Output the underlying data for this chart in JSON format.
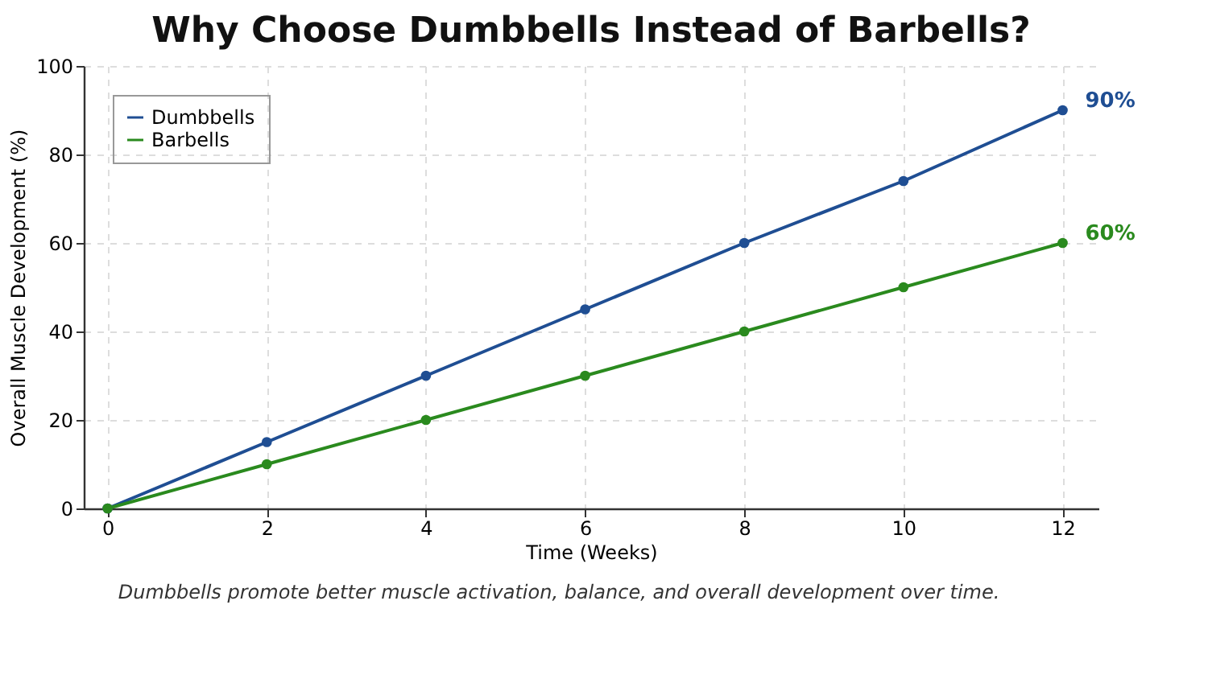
{
  "chart_data": {
    "type": "line",
    "title": "Why Choose Dumbbells Instead of Barbells?",
    "xlabel": "Time (Weeks)",
    "ylabel": "Overall Muscle Development (%)",
    "x": [
      0,
      2,
      4,
      6,
      8,
      10,
      12
    ],
    "series": [
      {
        "name": "Dumbbells",
        "color": "#1f4e93",
        "values": [
          0,
          15,
          30,
          45,
          60,
          74,
          90
        ]
      },
      {
        "name": "Barbells",
        "color": "#2a8a1e",
        "values": [
          0,
          10,
          20,
          30,
          40,
          50,
          60
        ]
      }
    ],
    "xlim": [
      -0.3,
      12.45
    ],
    "xticks": [
      0,
      2,
      4,
      6,
      8,
      10,
      12
    ],
    "ylim": [
      0,
      100
    ],
    "yticks": [
      0,
      20,
      40,
      60,
      80,
      100
    ],
    "grid": true,
    "legend": "top left",
    "marker": "circle",
    "line_style": "solid",
    "annotations": [
      {
        "text": "90%",
        "x": 12,
        "y": 90
      },
      {
        "text": "60%",
        "x": 12,
        "y": 60
      },
      "Dumbbells promote better muscle activation, balance, and overall development over time."
    ]
  }
}
